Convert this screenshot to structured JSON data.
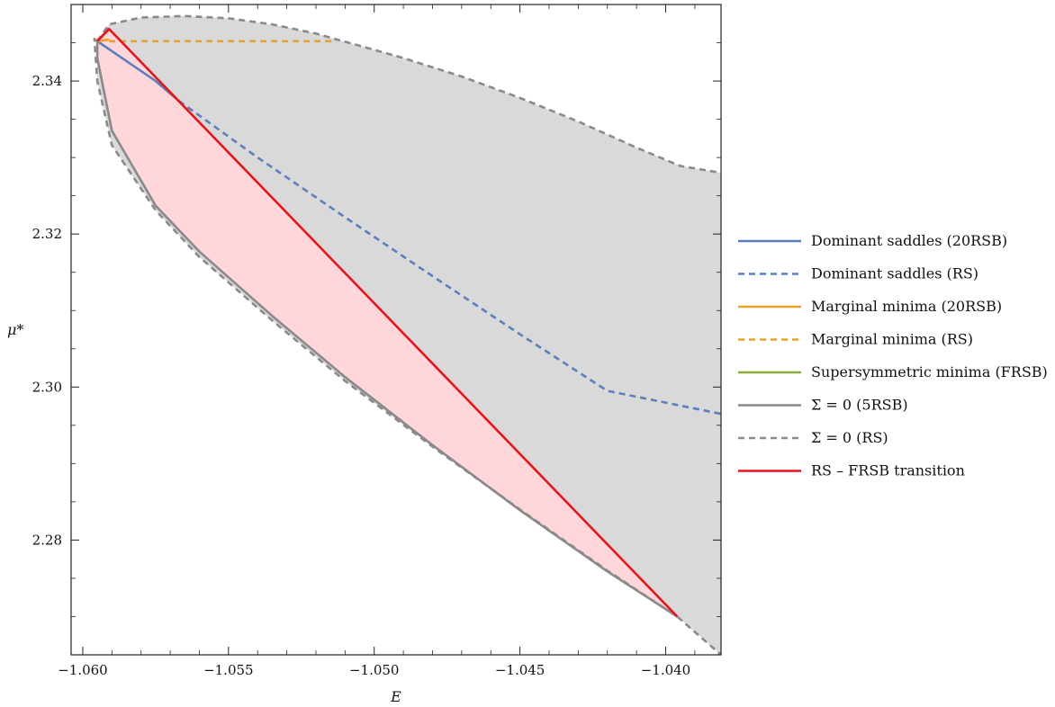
{
  "chart_data": {
    "type": "line",
    "xlabel": "E",
    "ylabel": "μ*",
    "xlim": [
      -1.0604,
      -1.0381
    ],
    "ylim": [
      2.265,
      2.35
    ],
    "x_ticks": [
      -1.06,
      -1.055,
      -1.05,
      -1.045,
      -1.04
    ],
    "x_tick_labels": [
      "−1.060",
      "−1.055",
      "−1.050",
      "−1.045",
      "−1.040"
    ],
    "y_ticks": [
      2.28,
      2.3,
      2.32,
      2.34
    ],
    "y_tick_labels": [
      "2.28",
      "2.30",
      "2.32",
      "2.34"
    ],
    "legend_position": "right",
    "grid": false,
    "regions": [
      {
        "name": "gray region",
        "color": "#d9d9d9",
        "points": [
          [
            -1.0595,
            2.3452
          ],
          [
            -1.0591,
            2.3474
          ],
          [
            -1.058,
            2.3483
          ],
          [
            -1.0565,
            2.3485
          ],
          [
            -1.055,
            2.3482
          ],
          [
            -1.0535,
            2.3474
          ],
          [
            -1.052,
            2.3462
          ],
          [
            -1.0505,
            2.3446
          ],
          [
            -1.049,
            2.343
          ],
          [
            -1.047,
            2.3406
          ],
          [
            -1.045,
            2.3378
          ],
          [
            -1.043,
            2.3347
          ],
          [
            -1.041,
            2.3313
          ],
          [
            -1.0395,
            2.3289
          ],
          [
            -1.0381,
            2.328
          ],
          [
            -1.0381,
            2.265
          ],
          [
            -1.0396,
            2.27
          ],
          [
            -1.042,
            2.276
          ],
          [
            -1.045,
            2.284
          ],
          [
            -1.048,
            2.2922
          ],
          [
            -1.051,
            2.3008
          ],
          [
            -1.0535,
            2.3087
          ],
          [
            -1.056,
            2.317
          ],
          [
            -1.0575,
            2.3231
          ],
          [
            -1.059,
            2.3316
          ],
          [
            -1.0595,
            2.34
          ],
          [
            -1.0595,
            2.3452
          ]
        ]
      },
      {
        "name": "pink region",
        "color": "#ffd6d9",
        "points": [
          [
            -1.0595,
            2.3452
          ],
          [
            -1.0591,
            2.3468
          ],
          [
            -1.0396,
            2.27
          ],
          [
            -1.042,
            2.2759
          ],
          [
            -1.045,
            2.2839
          ],
          [
            -1.048,
            2.2924
          ],
          [
            -1.051,
            2.3013
          ],
          [
            -1.0535,
            2.3093
          ],
          [
            -1.056,
            2.3177
          ],
          [
            -1.0575,
            2.3237
          ],
          [
            -1.059,
            2.3335
          ],
          [
            -1.0595,
            2.343
          ],
          [
            -1.0595,
            2.3452
          ]
        ]
      }
    ],
    "series": [
      {
        "name": "Dominant saddles (20RSB)",
        "color": "#5b7fbd",
        "dash": "solid",
        "points": [
          [
            -1.0595,
            2.3452
          ],
          [
            -1.0585,
            2.3426
          ],
          [
            -1.0575,
            2.34
          ],
          [
            -1.0567,
            2.3374
          ]
        ]
      },
      {
        "name": "Dominant saddles (RS)",
        "color": "#5b7fbd",
        "dash": "dashed",
        "points": [
          [
            -1.0567,
            2.3374
          ],
          [
            -1.054,
            2.33
          ],
          [
            -1.051,
            2.3222
          ],
          [
            -1.048,
            2.3145
          ],
          [
            -1.045,
            2.3069
          ],
          [
            -1.042,
            2.2995
          ],
          [
            -1.0381,
            2.2965
          ]
        ]
      },
      {
        "name": "Marginal minima (20RSB)",
        "color": "#e8a02e",
        "dash": "solid",
        "points": [
          [
            -1.0595,
            2.3452
          ],
          [
            -1.0591,
            2.3454
          ]
        ]
      },
      {
        "name": "Marginal minima (RS)",
        "color": "#e8a02e",
        "dash": "dashed",
        "points": [
          [
            -1.0591,
            2.3452
          ],
          [
            -1.0513,
            2.3452
          ]
        ]
      },
      {
        "name": "Supersymmetric minima (FRSB)",
        "color": "#86b038",
        "dash": "solid",
        "points": [
          [
            -1.0595,
            2.3452
          ],
          [
            -1.0593,
            2.346
          ],
          [
            -1.0591,
            2.3468
          ]
        ]
      },
      {
        "name": "Σ = 0 (5RSB)",
        "color": "#8a8a8a",
        "dash": "solid",
        "points": [
          [
            -1.0595,
            2.3452
          ],
          [
            -1.0595,
            2.343
          ],
          [
            -1.059,
            2.3335
          ],
          [
            -1.0575,
            2.3237
          ],
          [
            -1.056,
            2.3177
          ],
          [
            -1.0535,
            2.3093
          ],
          [
            -1.051,
            2.3013
          ],
          [
            -1.048,
            2.2924
          ],
          [
            -1.045,
            2.2839
          ],
          [
            -1.042,
            2.2759
          ],
          [
            -1.0396,
            2.27
          ]
        ]
      },
      {
        "name": "Σ = 0 (RS)",
        "color": "#8a8a8a",
        "dash": "dashed",
        "points": [
          [
            -1.0595,
            2.3452
          ],
          [
            -1.0596,
            2.3455
          ],
          [
            -1.0595,
            2.34
          ],
          [
            -1.059,
            2.3316
          ],
          [
            -1.0575,
            2.3231
          ],
          [
            -1.056,
            2.317
          ],
          [
            -1.0535,
            2.3087
          ],
          [
            -1.051,
            2.3008
          ],
          [
            -1.048,
            2.2922
          ],
          [
            -1.045,
            2.284
          ],
          [
            -1.042,
            2.276
          ],
          [
            -1.0396,
            2.27
          ],
          [
            -1.0381,
            2.265
          ]
        ]
      },
      {
        "name": "Σ = 0 (RS) upper",
        "color": "#8a8a8a",
        "dash": "dashed",
        "points": [
          [
            -1.0595,
            2.3452
          ],
          [
            -1.0591,
            2.3474
          ],
          [
            -1.058,
            2.3483
          ],
          [
            -1.0565,
            2.3485
          ],
          [
            -1.055,
            2.3482
          ],
          [
            -1.0535,
            2.3474
          ],
          [
            -1.052,
            2.3462
          ],
          [
            -1.0505,
            2.3446
          ],
          [
            -1.049,
            2.343
          ],
          [
            -1.047,
            2.3406
          ],
          [
            -1.045,
            2.3378
          ],
          [
            -1.043,
            2.3347
          ],
          [
            -1.041,
            2.3313
          ],
          [
            -1.0395,
            2.3289
          ],
          [
            -1.0381,
            2.328
          ]
        ]
      },
      {
        "name": "RS – FRSB transition",
        "color": "#e8141a",
        "dash": "solid",
        "points": [
          [
            -1.0595,
            2.3452
          ],
          [
            -1.0591,
            2.3468
          ],
          [
            -1.0396,
            2.27
          ]
        ]
      }
    ],
    "legend": [
      {
        "label": "Dominant saddles (20RSB)",
        "color": "#5b7fbd",
        "dash": "solid"
      },
      {
        "label": "Dominant saddles (RS)",
        "color": "#5b7fbd",
        "dash": "dashed"
      },
      {
        "label": "Marginal minima (20RSB)",
        "color": "#e8a02e",
        "dash": "solid"
      },
      {
        "label": "Marginal minima (RS)",
        "color": "#e8a02e",
        "dash": "dashed"
      },
      {
        "label": "Supersymmetric minima (FRSB)",
        "color": "#86b038",
        "dash": "solid"
      },
      {
        "label": "Σ = 0 (5RSB)",
        "color": "#8a8a8a",
        "dash": "solid"
      },
      {
        "label": "Σ = 0 (RS)",
        "color": "#8a8a8a",
        "dash": "dashed"
      },
      {
        "label": "RS – FRSB transition",
        "color": "#e8141a",
        "dash": "solid"
      }
    ]
  }
}
